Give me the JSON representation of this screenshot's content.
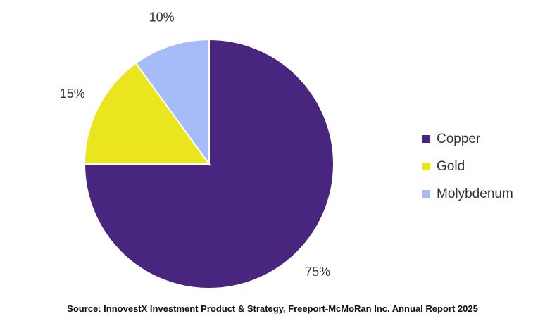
{
  "chart_data": {
    "type": "pie",
    "slices": [
      {
        "name": "Copper",
        "value": 75,
        "label": "75%",
        "color": "#482680"
      },
      {
        "name": "Gold",
        "value": 15,
        "label": "15%",
        "color": "#ebe51e"
      },
      {
        "name": "Molybdenum",
        "value": 10,
        "label": "10%",
        "color": "#a6bcf9"
      }
    ],
    "legend_position": "right",
    "source": "Source: InnovestX Investment Product & Strategy, Freeport-McMoRan Inc. Annual Report 2025"
  }
}
